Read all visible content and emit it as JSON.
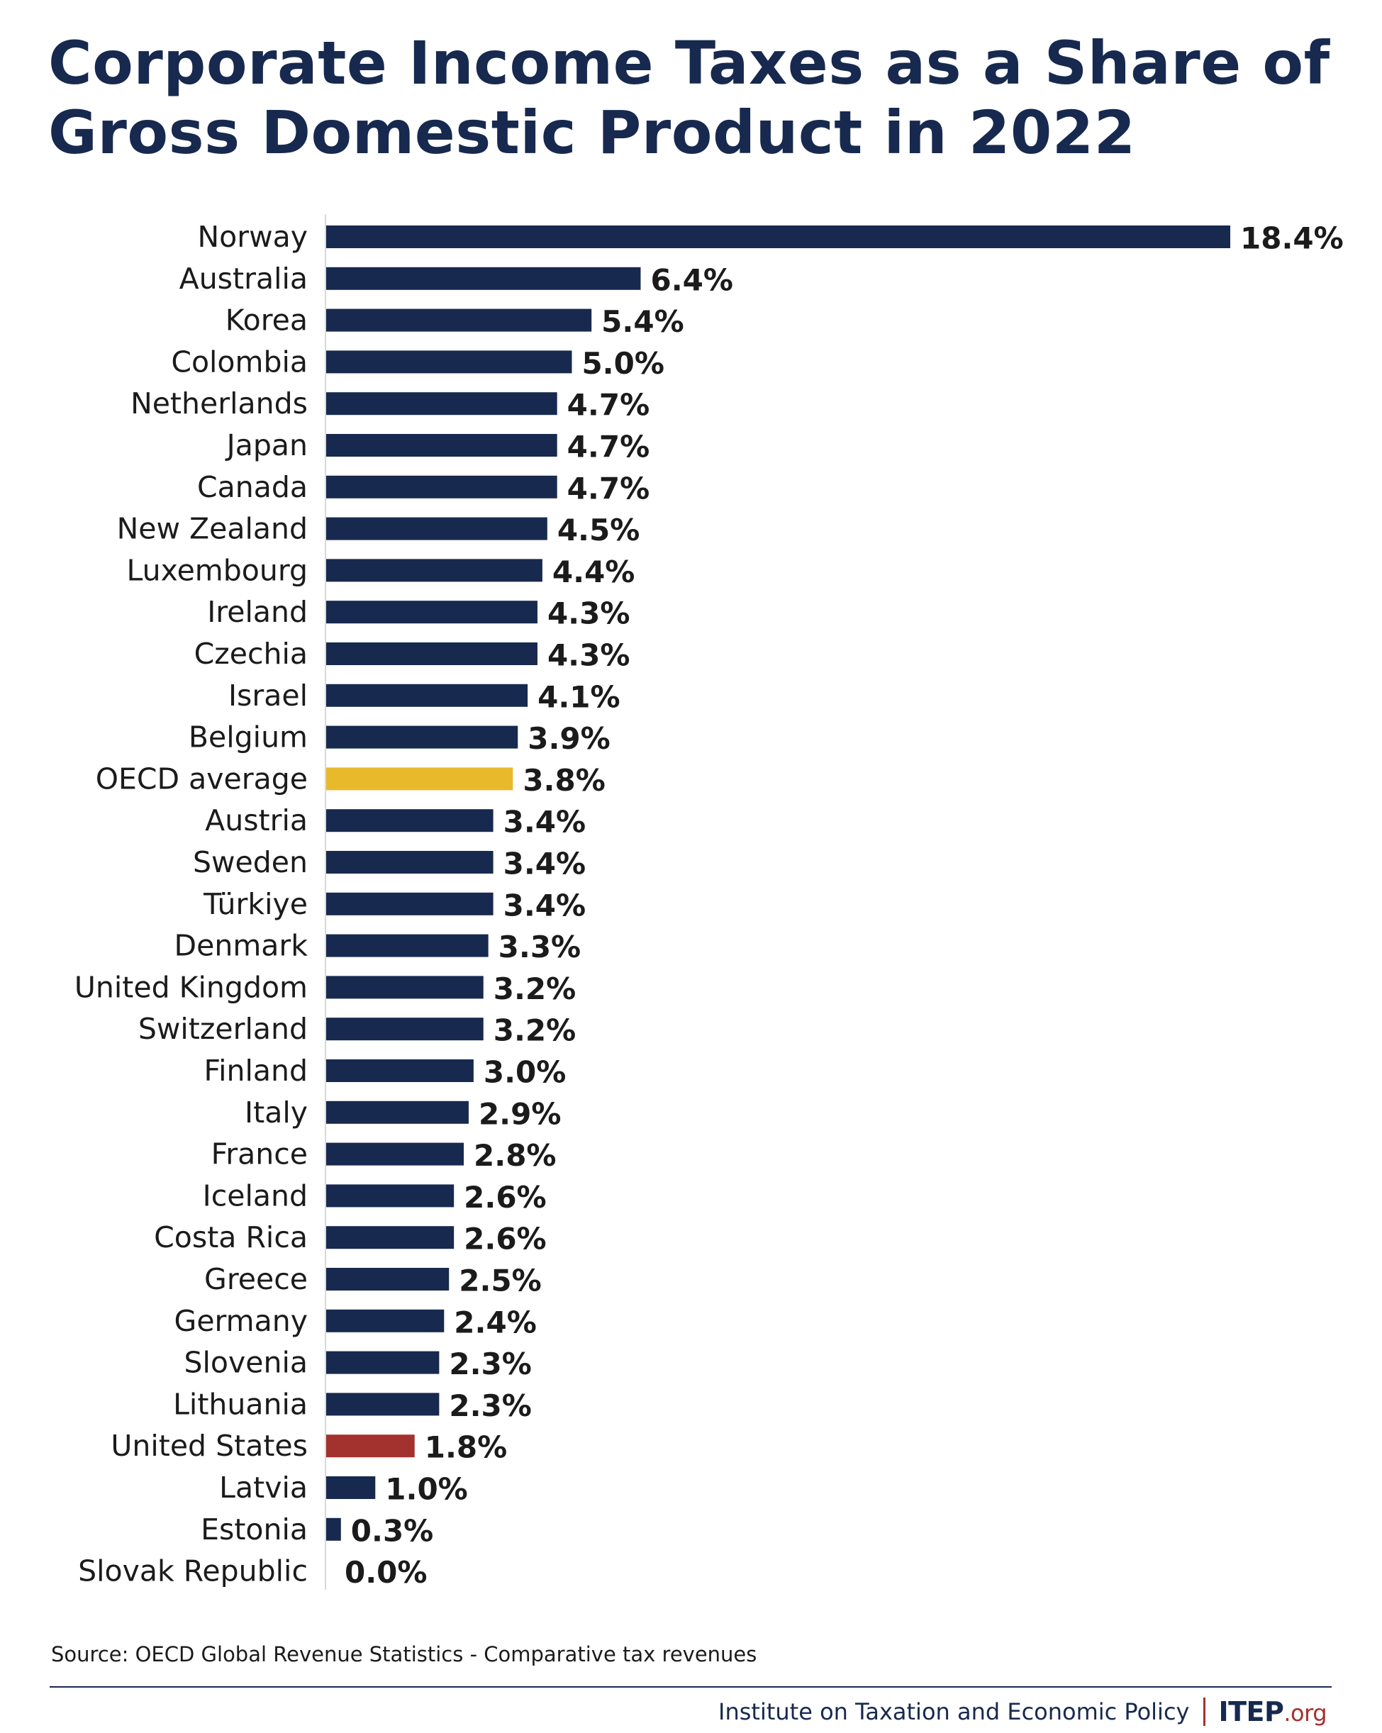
{
  "title": "Corporate Income Taxes as a Share of Gross Domestic Product in 2022",
  "colors": {
    "default_bar": "#17294e",
    "oecd_bar": "#e9b92c",
    "us_bar": "#a3312e",
    "title": "#17294e",
    "axis": "#d9d9d9"
  },
  "chart_data": {
    "type": "bar",
    "orientation": "horizontal",
    "title": "Corporate Income Taxes as a Share of Gross Domestic Product in 2022",
    "xlabel": "",
    "ylabel": "",
    "xlim": [
      0,
      18.4
    ],
    "value_suffix": "%",
    "grid": false,
    "legend": "none",
    "categories": [
      "Norway",
      "Australia",
      "Korea",
      "Colombia",
      "Netherlands",
      "Japan",
      "Canada",
      "New Zealand",
      "Luxembourg",
      "Ireland",
      "Czechia",
      "Israel",
      "Belgium",
      "OECD average",
      "Austria",
      "Sweden",
      "Türkiye",
      "Denmark",
      "United Kingdom",
      "Switzerland",
      "Finland",
      "Italy",
      "France",
      "Iceland",
      "Costa Rica",
      "Greece",
      "Germany",
      "Slovenia",
      "Lithuania",
      "United States",
      "Latvia",
      "Estonia",
      "Slovak Republic"
    ],
    "values": [
      18.4,
      6.4,
      5.4,
      5.0,
      4.7,
      4.7,
      4.7,
      4.5,
      4.4,
      4.3,
      4.3,
      4.1,
      3.9,
      3.8,
      3.4,
      3.4,
      3.4,
      3.3,
      3.2,
      3.2,
      3.0,
      2.9,
      2.8,
      2.6,
      2.6,
      2.5,
      2.4,
      2.3,
      2.3,
      1.8,
      1.0,
      0.3,
      0.0
    ],
    "value_labels": [
      "18.4%",
      "6.4%",
      "5.4%",
      "5.0%",
      "4.7%",
      "4.7%",
      "4.7%",
      "4.5%",
      "4.4%",
      "4.3%",
      "4.3%",
      "4.1%",
      "3.9%",
      "3.8%",
      "3.4%",
      "3.4%",
      "3.4%",
      "3.3%",
      "3.2%",
      "3.2%",
      "3.0%",
      "2.9%",
      "2.8%",
      "2.6%",
      "2.6%",
      "2.5%",
      "2.4%",
      "2.3%",
      "2.3%",
      "1.8%",
      "1.0%",
      "0.3%",
      "0.0%"
    ],
    "highlights": {
      "OECD average": "#e9b92c",
      "United States": "#a3312e"
    }
  },
  "source": "Source: OECD Global Revenue Statistics - Comparative tax revenues",
  "footer": {
    "org": "Institute on Taxation and Economic Policy",
    "logo_main": "ITEP",
    "logo_suffix": ".org"
  }
}
